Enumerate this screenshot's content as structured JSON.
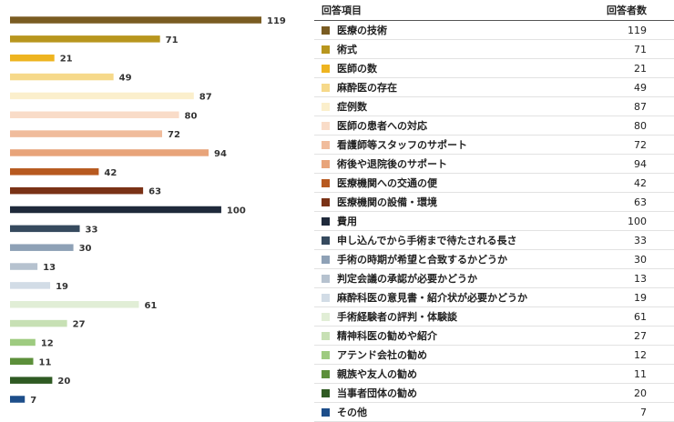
{
  "table": {
    "col_item": "回答項目",
    "col_count": "回答者数"
  },
  "chart_data": {
    "type": "bar",
    "orientation": "horizontal",
    "xlim": [
      0,
      119
    ],
    "categories": [
      "医療の技術",
      "術式",
      "医師の数",
      "麻酔医の存在",
      "症例数",
      "医師の患者への対応",
      "看護師等スタッフのサポート",
      "術後や退院後のサポート",
      "医療機関への交通の便",
      "医療機関の設備・環境",
      "費用",
      "申し込んでから手術まで待たされる長さ",
      "手術の時期が希望と合致するかどうか",
      "判定会議の承認が必要かどうか",
      "麻酔科医の意見書・紹介状が必要かどうか",
      "手術経験者の評判・体験談",
      "精神科医の勧めや紹介",
      "アテンド会社の勧め",
      "親族や友人の勧め",
      "当事者団体の勧め",
      "その他"
    ],
    "values": [
      119,
      71,
      21,
      49,
      87,
      80,
      72,
      94,
      42,
      63,
      100,
      33,
      30,
      13,
      19,
      61,
      27,
      12,
      11,
      20,
      7
    ],
    "colors": [
      "#7a5c22",
      "#b8961e",
      "#eeb420",
      "#f6d98a",
      "#fbefcc",
      "#f9dcc8",
      "#f0bc9c",
      "#e8a47a",
      "#b7591f",
      "#7a3216",
      "#1f2a3b",
      "#364a5e",
      "#8ea1b6",
      "#b6c2cf",
      "#d2dce6",
      "#e1eed6",
      "#c7e0b4",
      "#9ecb80",
      "#5c8f3a",
      "#2f5a23",
      "#1d4e8a"
    ]
  }
}
